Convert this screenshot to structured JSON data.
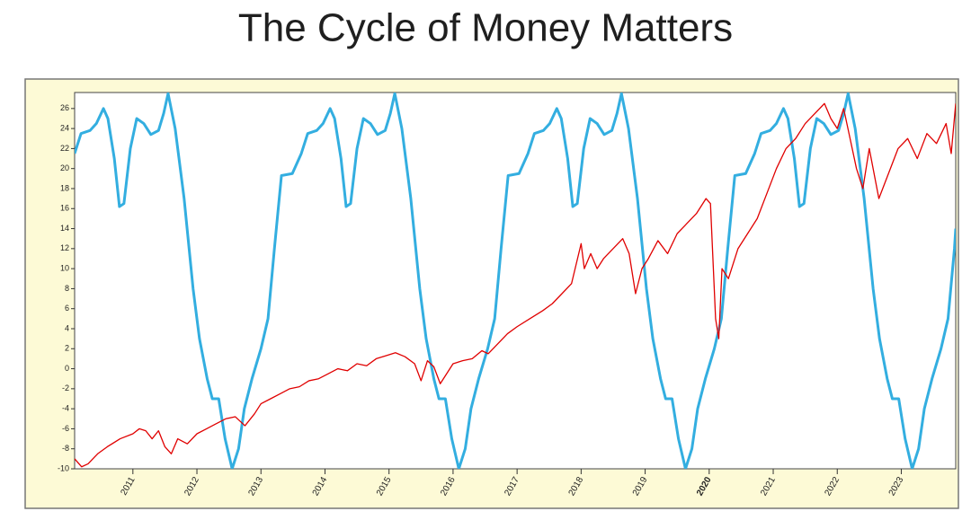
{
  "chart_data": {
    "type": "line",
    "title": "The Cycle of Money Matters",
    "xlim": [
      2010.09,
      2023.85
    ],
    "ylim": [
      -10,
      27.6
    ],
    "xticks": [
      2011,
      2012,
      2013,
      2014,
      2015,
      2016,
      2017,
      2018,
      2019,
      2020,
      2021,
      2022,
      2023
    ],
    "yticks": [
      -10,
      -8,
      -6,
      -4,
      -2,
      0,
      2,
      4,
      6,
      8,
      10,
      12,
      14,
      16,
      18,
      20,
      22,
      24,
      26
    ],
    "highlighted_xtick": 2020,
    "highlight_color": "#b00000",
    "series": [
      {
        "color": "#33aee0",
        "x": [
          2010.09,
          2010.19,
          2010.33,
          2010.43,
          2010.54,
          2010.61,
          2010.71,
          2010.79,
          2010.86,
          2010.96,
          2011.06,
          2011.17,
          2011.28,
          2011.4,
          2011.48,
          2011.55,
          2011.66,
          2011.8,
          2011.94,
          2012.04,
          2012.16,
          2012.24,
          2012.34,
          2012.44,
          2012.55,
          2012.65,
          2012.74,
          2012.86,
          2013.0,
          2013.11,
          2013.21,
          2013.32,
          2013.49,
          2013.63,
          2013.73,
          2013.87,
          2013.97,
          2014.08,
          2014.15,
          2014.25,
          2014.33,
          2014.4,
          2014.5,
          2014.6,
          2014.71,
          2014.82,
          2014.94,
          2015.02,
          2015.09,
          2015.2,
          2015.34,
          2015.48,
          2015.58,
          2015.7,
          2015.78,
          2015.88,
          2015.98,
          2016.09,
          2016.19,
          2016.28,
          2016.4,
          2016.54,
          2016.65,
          2016.75,
          2016.86,
          2017.03,
          2017.17,
          2017.27,
          2017.41,
          2017.51,
          2017.62,
          2017.69,
          2017.79,
          2017.87,
          2017.94,
          2018.04,
          2018.14,
          2018.25,
          2018.36,
          2018.48,
          2018.56,
          2018.63,
          2018.74,
          2018.88,
          2019.02,
          2019.12,
          2019.24,
          2019.32,
          2019.42,
          2019.52,
          2019.63,
          2019.73,
          2019.82,
          2019.94,
          2020.08,
          2020.19,
          2020.29,
          2020.4,
          2020.57,
          2020.71,
          2020.81,
          2020.95,
          2021.05,
          2021.16,
          2021.23,
          2021.33,
          2021.41,
          2021.48,
          2021.58,
          2021.68,
          2021.79,
          2021.9,
          2022.02,
          2022.1,
          2022.17,
          2022.28,
          2022.42,
          2022.56,
          2022.66,
          2022.78,
          2022.86,
          2022.96,
          2023.06,
          2023.17,
          2023.27,
          2023.36,
          2023.48,
          2023.62,
          2023.73,
          2023.83,
          2023.85
        ],
        "values": [
          21.5,
          23.5,
          23.8,
          24.5,
          26,
          25,
          21,
          16.2,
          16.5,
          22,
          25,
          24.5,
          23.4,
          23.8,
          25.5,
          27.5,
          24,
          17,
          8,
          3,
          -1,
          -3,
          -3,
          -7,
          -10,
          -8,
          -4,
          -1,
          2,
          5,
          12,
          19.3,
          19.5,
          21.5,
          23.5,
          23.8,
          24.5,
          26,
          25,
          21,
          16.2,
          16.5,
          22,
          25,
          24.5,
          23.4,
          23.8,
          25.5,
          27.5,
          24,
          17,
          8,
          3,
          -1,
          -3,
          -3,
          -7,
          -10,
          -8,
          -4,
          -1,
          2,
          5,
          12,
          19.3,
          19.5,
          21.5,
          23.5,
          23.8,
          24.5,
          26,
          25,
          21,
          16.2,
          16.5,
          22,
          25,
          24.5,
          23.4,
          23.8,
          25.5,
          27.5,
          24,
          17,
          8,
          3,
          -1,
          -3,
          -3,
          -7,
          -10,
          -8,
          -4,
          -1,
          2,
          5,
          12,
          19.3,
          19.5,
          21.5,
          23.5,
          23.8,
          24.5,
          26,
          25,
          21,
          16.2,
          16.5,
          22,
          25,
          24.5,
          23.4,
          23.8,
          25.5,
          27.5,
          24,
          17,
          8,
          3,
          -1,
          -3,
          -3,
          -7,
          -10,
          -8,
          -4,
          -1,
          2,
          5,
          12,
          14
        ]
      },
      {
        "color": "#e00000",
        "x": [
          2010.09,
          2010.2,
          2010.3,
          2010.45,
          2010.6,
          2010.8,
          2011.0,
          2011.1,
          2011.2,
          2011.3,
          2011.4,
          2011.5,
          2011.6,
          2011.7,
          2011.85,
          2012.0,
          2012.15,
          2012.3,
          2012.45,
          2012.6,
          2012.75,
          2012.9,
          2013.0,
          2013.15,
          2013.3,
          2013.45,
          2013.6,
          2013.75,
          2013.9,
          2014.05,
          2014.2,
          2014.35,
          2014.5,
          2014.65,
          2014.8,
          2014.95,
          2015.1,
          2015.25,
          2015.4,
          2015.5,
          2015.6,
          2015.7,
          2015.8,
          2015.9,
          2016.0,
          2016.15,
          2016.3,
          2016.45,
          2016.55,
          2016.7,
          2016.85,
          2017.0,
          2017.2,
          2017.4,
          2017.55,
          2017.7,
          2017.85,
          2018.0,
          2018.05,
          2018.15,
          2018.25,
          2018.35,
          2018.5,
          2018.65,
          2018.75,
          2018.85,
          2018.95,
          2019.05,
          2019.2,
          2019.35,
          2019.5,
          2019.65,
          2019.8,
          2019.95,
          2020.02,
          2020.1,
          2020.15,
          2020.2,
          2020.3,
          2020.45,
          2020.6,
          2020.75,
          2020.9,
          2021.05,
          2021.2,
          2021.35,
          2021.5,
          2021.65,
          2021.8,
          2021.9,
          2022.0,
          2022.1,
          2022.2,
          2022.3,
          2022.4,
          2022.5,
          2022.65,
          2022.8,
          2022.95,
          2023.1,
          2023.25,
          2023.4,
          2023.55,
          2023.7,
          2023.78,
          2023.85
        ],
        "values": [
          -9,
          -9.8,
          -9.5,
          -8.5,
          -7.8,
          -7,
          -6.5,
          -6,
          -6.2,
          -7,
          -6.2,
          -7.8,
          -8.5,
          -7,
          -7.5,
          -6.5,
          -6,
          -5.5,
          -5,
          -4.8,
          -5.7,
          -4.5,
          -3.5,
          -3,
          -2.5,
          -2,
          -1.8,
          -1.2,
          -1,
          -0.5,
          0,
          -0.2,
          0.5,
          0.3,
          1,
          1.3,
          1.6,
          1.2,
          0.5,
          -1.2,
          0.8,
          0.2,
          -1.5,
          -0.5,
          0.5,
          0.8,
          1,
          1.8,
          1.5,
          2.5,
          3.5,
          4.2,
          5,
          5.8,
          6.5,
          7.5,
          8.5,
          12.5,
          10,
          11.5,
          10,
          11,
          12,
          13,
          11.5,
          7.5,
          10,
          11,
          12.8,
          11.5,
          13.5,
          14.5,
          15.5,
          17,
          16.5,
          5,
          3,
          10,
          9,
          12,
          13.5,
          15,
          17.5,
          20,
          22,
          23,
          24.5,
          25.5,
          26.5,
          25,
          24,
          26,
          23,
          20,
          18,
          22,
          17,
          19.5,
          22,
          23,
          21,
          23.5,
          22.5,
          24.5,
          21.5,
          26.5
        ]
      }
    ]
  }
}
